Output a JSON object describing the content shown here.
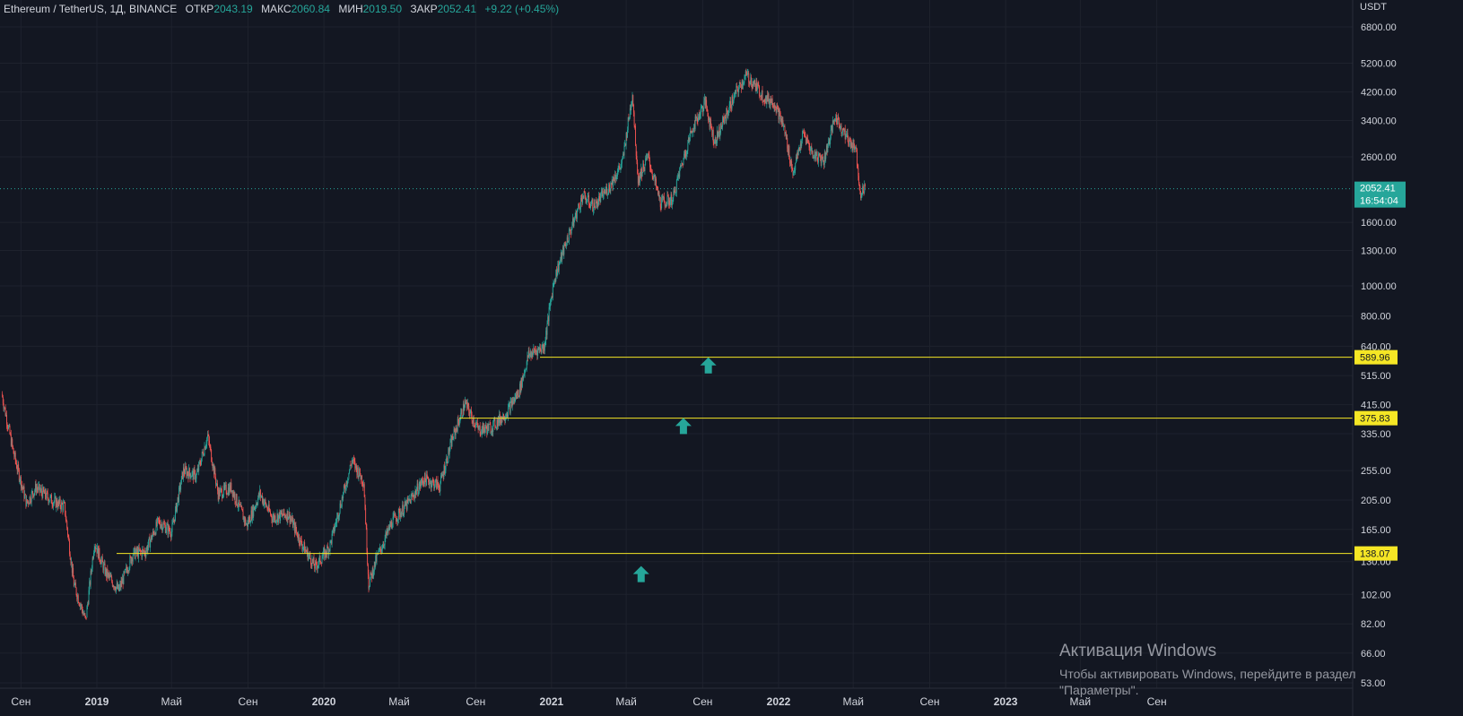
{
  "legend": {
    "symbol": "Ethereum / TetherUS, 1Д, BINANCE",
    "open_label": "ОТКР",
    "open": "2043.19",
    "high_label": "МАКС",
    "high": "2060.84",
    "low_label": "МИН",
    "low": "2019.50",
    "close_label": "ЗАКР",
    "close": "2052.41",
    "change": "+9.22 (+0.45%)"
  },
  "watermark": {
    "title": "Активация Windows",
    "subtitle": "Чтобы активировать Windows, перейдите в раздел",
    "subtitle2": "\"Параметры\"."
  },
  "colors": {
    "background": "#131722",
    "up": "#26a69a",
    "down": "#ef5350",
    "level_line": "#f5e625",
    "grid": "#1e222d",
    "price_badge": "#26a69a"
  },
  "chart_data": {
    "type": "candlestick",
    "scale": "log",
    "unit": "USDT",
    "y_ticks": [
      6800,
      5200,
      4200,
      3400,
      2600,
      2052.41,
      1600,
      1300,
      1000,
      800,
      640,
      515,
      415,
      335,
      255,
      205,
      165,
      130,
      102,
      82,
      66,
      53
    ],
    "y_tick_labels": [
      "6800.00",
      "5200.00",
      "4200.00",
      "3400.00",
      "2600.00",
      "",
      "1600.00",
      "1300.00",
      "1000.00",
      "800.00",
      "640.00",
      "515.00",
      "415.00",
      "335.00",
      "255.00",
      "205.00",
      "165.00",
      "130.00",
      "102.00",
      "82.00",
      "66.00",
      "53.00"
    ],
    "x_ticks": [
      {
        "date": "2018-09-01",
        "label": "Сен"
      },
      {
        "date": "2019-01-01",
        "label": "2019"
      },
      {
        "date": "2019-05-01",
        "label": "Май"
      },
      {
        "date": "2019-09-01",
        "label": "Сен"
      },
      {
        "date": "2020-01-01",
        "label": "2020"
      },
      {
        "date": "2020-05-01",
        "label": "Май"
      },
      {
        "date": "2020-09-01",
        "label": "Сен"
      },
      {
        "date": "2021-01-01",
        "label": "2021"
      },
      {
        "date": "2021-05-01",
        "label": "Май"
      },
      {
        "date": "2021-09-01",
        "label": "Сен"
      },
      {
        "date": "2022-01-01",
        "label": "2022"
      },
      {
        "date": "2022-05-01",
        "label": "Май"
      },
      {
        "date": "2022-09-01",
        "label": "Сен"
      },
      {
        "date": "2023-01-01",
        "label": "2023"
      },
      {
        "date": "2023-05-01",
        "label": "Май"
      },
      {
        "date": "2023-09-01",
        "label": "Сен"
      }
    ],
    "price_path": [
      [
        "2018-08-01",
        450
      ],
      [
        "2018-08-20",
        290
      ],
      [
        "2018-09-10",
        200
      ],
      [
        "2018-09-25",
        225
      ],
      [
        "2018-10-20",
        205
      ],
      [
        "2018-11-10",
        195
      ],
      [
        "2018-11-25",
        110
      ],
      [
        "2018-12-14",
        84
      ],
      [
        "2018-12-28",
        150
      ],
      [
        "2019-01-15",
        120
      ],
      [
        "2019-02-05",
        105
      ],
      [
        "2019-02-28",
        138
      ],
      [
        "2019-03-20",
        140
      ],
      [
        "2019-04-10",
        175
      ],
      [
        "2019-05-01",
        162
      ],
      [
        "2019-05-20",
        255
      ],
      [
        "2019-06-10",
        245
      ],
      [
        "2019-06-28",
        330
      ],
      [
        "2019-07-15",
        215
      ],
      [
        "2019-08-05",
        225
      ],
      [
        "2019-08-30",
        170
      ],
      [
        "2019-09-20",
        215
      ],
      [
        "2019-10-10",
        180
      ],
      [
        "2019-11-05",
        185
      ],
      [
        "2019-11-25",
        150
      ],
      [
        "2019-12-18",
        125
      ],
      [
        "2020-01-10",
        145
      ],
      [
        "2020-02-15",
        275
      ],
      [
        "2020-03-05",
        235
      ],
      [
        "2020-03-13",
        110
      ],
      [
        "2020-03-25",
        132
      ],
      [
        "2020-04-20",
        175
      ],
      [
        "2020-05-15",
        200
      ],
      [
        "2020-06-10",
        240
      ],
      [
        "2020-07-05",
        228
      ],
      [
        "2020-07-25",
        320
      ],
      [
        "2020-08-15",
        420
      ],
      [
        "2020-09-05",
        345
      ],
      [
        "2020-09-25",
        350
      ],
      [
        "2020-10-20",
        390
      ],
      [
        "2020-11-10",
        460
      ],
      [
        "2020-11-25",
        600
      ],
      [
        "2020-12-20",
        640
      ],
      [
        "2021-01-05",
        1050
      ],
      [
        "2021-01-20",
        1300
      ],
      [
        "2021-02-20",
        1950
      ],
      [
        "2021-03-10",
        1800
      ],
      [
        "2021-04-05",
        2100
      ],
      [
        "2021-04-25",
        2500
      ],
      [
        "2021-05-11",
        4170
      ],
      [
        "2021-05-20",
        2200
      ],
      [
        "2021-06-05",
        2600
      ],
      [
        "2021-06-25",
        1850
      ],
      [
        "2021-07-15",
        1900
      ],
      [
        "2021-07-25",
        2300
      ],
      [
        "2021-08-15",
        3200
      ],
      [
        "2021-09-05",
        3900
      ],
      [
        "2021-09-20",
        2900
      ],
      [
        "2021-10-10",
        3600
      ],
      [
        "2021-10-25",
        4200
      ],
      [
        "2021-11-10",
        4750
      ],
      [
        "2021-11-25",
        4400
      ],
      [
        "2021-12-10",
        4000
      ],
      [
        "2021-12-25",
        3900
      ],
      [
        "2022-01-10",
        3200
      ],
      [
        "2022-01-24",
        2300
      ],
      [
        "2022-02-10",
        3100
      ],
      [
        "2022-02-25",
        2650
      ],
      [
        "2022-03-15",
        2550
      ],
      [
        "2022-04-02",
        3500
      ],
      [
        "2022-04-25",
        2900
      ],
      [
        "2022-05-05",
        2800
      ],
      [
        "2022-05-12",
        2000
      ],
      [
        "2022-05-20",
        2052.41
      ]
    ],
    "levels": [
      589.96,
      375.83,
      138.07
    ],
    "level_labels": [
      "589.96",
      "375.83",
      "138.07"
    ],
    "last_price": "2052.41",
    "countdown": "16:54:04",
    "markers": [
      {
        "type": "arrow-up",
        "date": "2021-09-10",
        "price": 548
      },
      {
        "type": "arrow-up",
        "date": "2021-08-01",
        "price": 350
      },
      {
        "type": "arrow-up",
        "date": "2021-05-25",
        "price": 117
      }
    ]
  }
}
